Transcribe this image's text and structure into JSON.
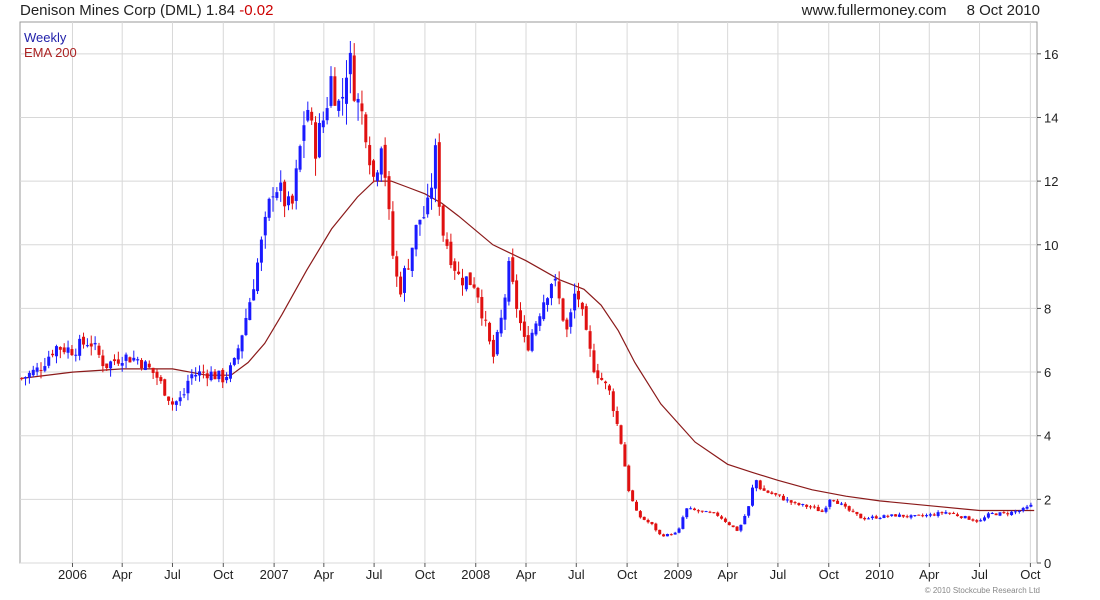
{
  "header": {
    "ticker_label": "Denison Mines Corp (DML)",
    "last_price": "1.84",
    "change": "-0.02",
    "source": "www.fullermoney.com",
    "date": "8 Oct 2010"
  },
  "legend": {
    "weekly": "Weekly",
    "ema": "EMA 200"
  },
  "footer": {
    "copyright": "© 2010 Stockcube Research Ltd"
  },
  "colors": {
    "up": "#1a1aff",
    "down": "#e01010",
    "ema": "#8b1a1a",
    "grid": "#d8d8d8"
  },
  "chart_data": {
    "type": "candlestick",
    "xlabel": "",
    "ylabel": "",
    "ylim": [
      0,
      17
    ],
    "yticks": [
      0,
      2,
      4,
      6,
      8,
      10,
      12,
      14,
      16
    ],
    "grid": true,
    "y_axis_side": "right",
    "xlim": [
      "2005-09-28",
      "2010-10-13"
    ],
    "xticks": [
      {
        "label": "2006",
        "date": "2006-01-01"
      },
      {
        "label": "Apr",
        "date": "2006-04-01"
      },
      {
        "label": "Jul",
        "date": "2006-07-01"
      },
      {
        "label": "Oct",
        "date": "2006-10-01"
      },
      {
        "label": "2007",
        "date": "2007-01-01"
      },
      {
        "label": "Apr",
        "date": "2007-04-01"
      },
      {
        "label": "Jul",
        "date": "2007-07-01"
      },
      {
        "label": "Oct",
        "date": "2007-10-01"
      },
      {
        "label": "2008",
        "date": "2008-01-01"
      },
      {
        "label": "Apr",
        "date": "2008-04-01"
      },
      {
        "label": "Jul",
        "date": "2008-07-01"
      },
      {
        "label": "Oct",
        "date": "2008-10-01"
      },
      {
        "label": "2009",
        "date": "2009-01-01"
      },
      {
        "label": "Apr",
        "date": "2009-04-01"
      },
      {
        "label": "Jul",
        "date": "2009-07-01"
      },
      {
        "label": "Oct",
        "date": "2009-10-01"
      },
      {
        "label": "2010",
        "date": "2010-01-01"
      },
      {
        "label": "Apr",
        "date": "2010-04-01"
      },
      {
        "label": "Jul",
        "date": "2010-07-01"
      },
      {
        "label": "Oct",
        "date": "2010-10-01"
      }
    ],
    "price_keypoints": [
      [
        "2005-10-01",
        5.8
      ],
      [
        "2005-11-01",
        6.1
      ],
      [
        "2005-12-01",
        6.8
      ],
      [
        "2006-01-01",
        6.7
      ],
      [
        "2006-02-01",
        7.0
      ],
      [
        "2006-03-01",
        6.2
      ],
      [
        "2006-04-01",
        6.5
      ],
      [
        "2006-05-01",
        6.4
      ],
      [
        "2006-06-01",
        5.9
      ],
      [
        "2006-07-01",
        5.0
      ],
      [
        "2006-07-20",
        5.2
      ],
      [
        "2006-08-01",
        5.9
      ],
      [
        "2006-09-01",
        6.0
      ],
      [
        "2006-10-01",
        5.8
      ],
      [
        "2006-10-20",
        6.2
      ],
      [
        "2006-11-15",
        8.0
      ],
      [
        "2006-12-15",
        10.5
      ],
      [
        "2007-01-01",
        12.0
      ],
      [
        "2007-02-01",
        11.0
      ],
      [
        "2007-03-01",
        14.5
      ],
      [
        "2007-03-15",
        13.0
      ],
      [
        "2007-04-01",
        14.0
      ],
      [
        "2007-04-15",
        15.3
      ],
      [
        "2007-05-01",
        14.2
      ],
      [
        "2007-05-15",
        16.0
      ],
      [
        "2007-06-01",
        14.5
      ],
      [
        "2007-06-15",
        13.8
      ],
      [
        "2007-07-01",
        12.0
      ],
      [
        "2007-07-15",
        13.5
      ],
      [
        "2007-08-01",
        10.0
      ],
      [
        "2007-08-15",
        8.5
      ],
      [
        "2007-09-01",
        9.5
      ],
      [
        "2007-09-20",
        10.8
      ],
      [
        "2007-10-05",
        11.0
      ],
      [
        "2007-10-20",
        12.8
      ],
      [
        "2007-11-01",
        10.5
      ],
      [
        "2007-12-01",
        9.0
      ],
      [
        "2008-01-01",
        8.8
      ],
      [
        "2008-02-01",
        6.4
      ],
      [
        "2008-02-15",
        7.5
      ],
      [
        "2008-03-01",
        9.2
      ],
      [
        "2008-04-01",
        6.7
      ],
      [
        "2008-05-01",
        8.2
      ],
      [
        "2008-05-20",
        9.0
      ],
      [
        "2008-06-15",
        7.2
      ],
      [
        "2008-07-01",
        8.7
      ],
      [
        "2008-07-20",
        7.0
      ],
      [
        "2008-08-01",
        6.2
      ],
      [
        "2008-09-01",
        5.3
      ],
      [
        "2008-09-20",
        3.8
      ],
      [
        "2008-10-05",
        2.2
      ],
      [
        "2008-10-20",
        1.5
      ],
      [
        "2008-11-15",
        1.2
      ],
      [
        "2008-12-01",
        0.85
      ],
      [
        "2009-01-01",
        0.95
      ],
      [
        "2009-01-15",
        1.7
      ],
      [
        "2009-02-15",
        1.6
      ],
      [
        "2009-03-15",
        1.5
      ],
      [
        "2009-04-05",
        1.2
      ],
      [
        "2009-04-20",
        1.0
      ],
      [
        "2009-05-10",
        1.8
      ],
      [
        "2009-05-20",
        2.7
      ],
      [
        "2009-06-01",
        2.3
      ],
      [
        "2009-07-01",
        2.1
      ],
      [
        "2009-08-01",
        1.85
      ],
      [
        "2009-09-01",
        1.75
      ],
      [
        "2009-09-20",
        1.6
      ],
      [
        "2009-10-05",
        2.1
      ],
      [
        "2009-11-01",
        1.7
      ],
      [
        "2009-12-01",
        1.4
      ],
      [
        "2010-01-01",
        1.45
      ],
      [
        "2010-02-01",
        1.5
      ],
      [
        "2010-03-01",
        1.45
      ],
      [
        "2010-04-01",
        1.5
      ],
      [
        "2010-05-01",
        1.6
      ],
      [
        "2010-06-01",
        1.45
      ],
      [
        "2010-07-01",
        1.3
      ],
      [
        "2010-07-20",
        1.55
      ],
      [
        "2010-08-15",
        1.55
      ],
      [
        "2010-09-15",
        1.65
      ],
      [
        "2010-10-08",
        1.84
      ]
    ],
    "ema_200": [
      [
        "2005-10-01",
        5.8
      ],
      [
        "2006-01-01",
        6.0
      ],
      [
        "2006-04-01",
        6.1
      ],
      [
        "2006-07-01",
        6.1
      ],
      [
        "2006-09-01",
        5.9
      ],
      [
        "2006-10-15",
        5.9
      ],
      [
        "2006-11-15",
        6.3
      ],
      [
        "2006-12-15",
        6.9
      ],
      [
        "2007-01-15",
        7.8
      ],
      [
        "2007-03-01",
        9.2
      ],
      [
        "2007-04-15",
        10.5
      ],
      [
        "2007-06-01",
        11.5
      ],
      [
        "2007-07-01",
        12.0
      ],
      [
        "2007-08-01",
        12.0
      ],
      [
        "2007-09-01",
        11.8
      ],
      [
        "2007-10-01",
        11.6
      ],
      [
        "2007-11-01",
        11.3
      ],
      [
        "2007-12-01",
        10.9
      ],
      [
        "2008-02-01",
        10.0
      ],
      [
        "2008-04-01",
        9.5
      ],
      [
        "2008-06-01",
        8.9
      ],
      [
        "2008-07-15",
        8.6
      ],
      [
        "2008-08-15",
        8.1
      ],
      [
        "2008-09-15",
        7.3
      ],
      [
        "2008-10-15",
        6.3
      ],
      [
        "2008-12-01",
        5.0
      ],
      [
        "2009-02-01",
        3.8
      ],
      [
        "2009-04-01",
        3.1
      ],
      [
        "2009-05-15",
        2.85
      ],
      [
        "2009-07-01",
        2.6
      ],
      [
        "2009-09-01",
        2.3
      ],
      [
        "2009-11-01",
        2.1
      ],
      [
        "2010-01-01",
        1.95
      ],
      [
        "2010-04-01",
        1.8
      ],
      [
        "2010-07-01",
        1.65
      ],
      [
        "2010-10-08",
        1.65
      ]
    ]
  }
}
